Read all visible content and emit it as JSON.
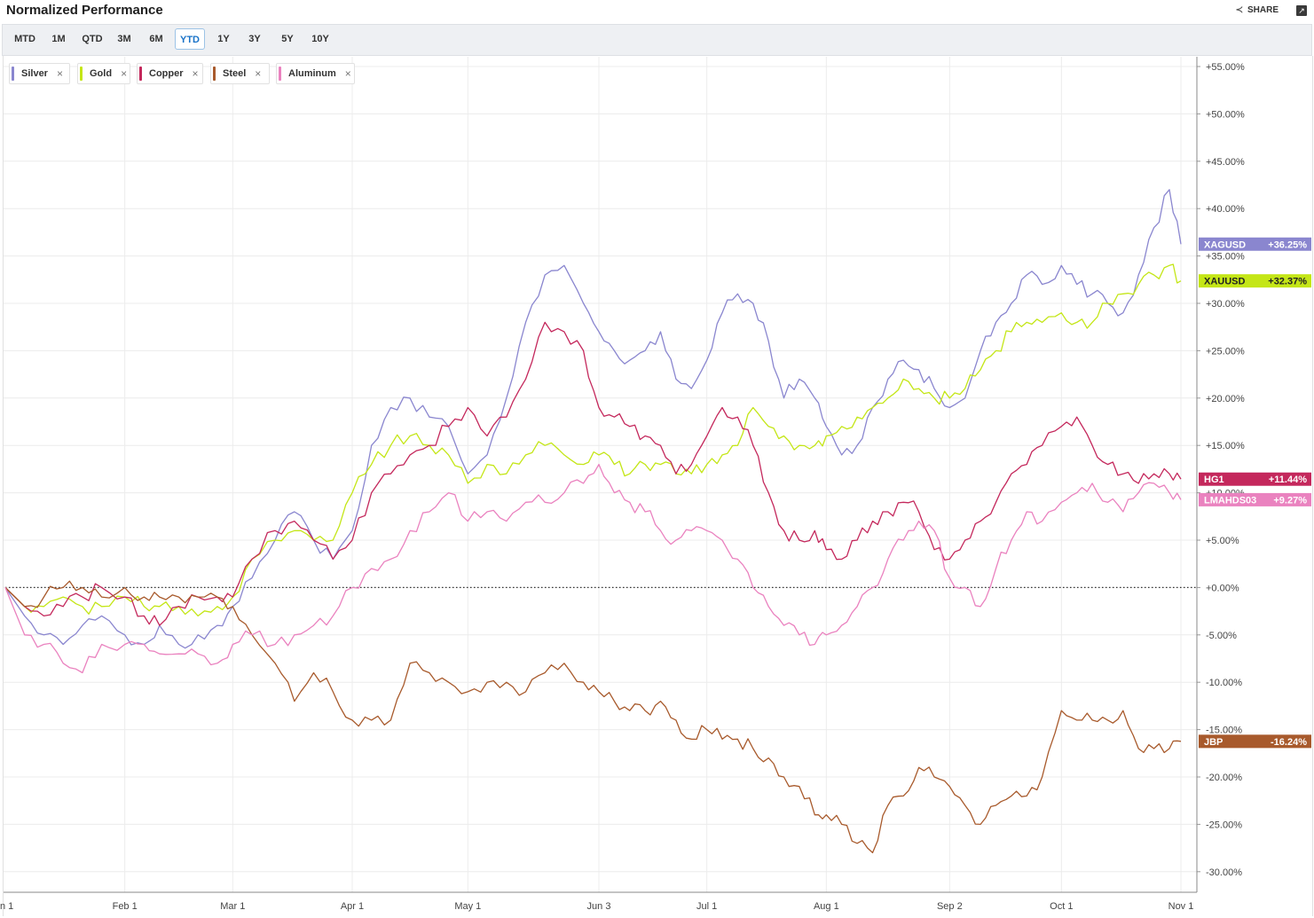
{
  "header": {
    "title": "Normalized Performance",
    "share_label": "SHARE",
    "share_icon": "share-icon",
    "expand_icon": "expand-icon"
  },
  "range_buttons": [
    {
      "label": "MTD",
      "active": false
    },
    {
      "label": "1M",
      "active": false
    },
    {
      "label": "QTD",
      "active": false
    },
    {
      "label": "3M",
      "active": false
    },
    {
      "label": "6M",
      "active": false
    },
    {
      "label": "YTD",
      "active": true
    },
    {
      "label": "1Y",
      "active": false
    },
    {
      "label": "3Y",
      "active": false
    },
    {
      "label": "5Y",
      "active": false
    },
    {
      "label": "10Y",
      "active": false
    }
  ],
  "legend_chips": [
    {
      "label": "Silver",
      "color": "#8a86cf"
    },
    {
      "label": "Gold",
      "color": "#c4e617"
    },
    {
      "label": "Copper",
      "color": "#c4285c"
    },
    {
      "label": "Steel",
      "color": "#a85a2c"
    },
    {
      "label": "Aluminum",
      "color": "#ea82bf"
    }
  ],
  "chart_data": {
    "type": "line",
    "title": "Normalized Performance",
    "x_tick_labels": [
      "n 1",
      "Feb 1",
      "Mar 1",
      "Apr 1",
      "May 1",
      "Jun 3",
      "Jul 1",
      "Aug 1",
      "Sep 2",
      "Oct 1",
      "Nov 1"
    ],
    "x_tick_days": [
      0,
      31,
      59,
      90,
      120,
      154,
      182,
      213,
      245,
      274,
      305
    ],
    "y_tick_labels": [
      "+55.00%",
      "+50.00%",
      "+45.00%",
      "+40.00%",
      "+35.00%",
      "+30.00%",
      "+25.00%",
      "+20.00%",
      "+15.00%",
      "+10.00%",
      "+5.00%",
      "+0.00%",
      "-5.00%",
      "-10.00%",
      "-15.00%",
      "-20.00%",
      "-25.00%",
      "-30.00%"
    ],
    "y_tick_values": [
      55,
      50,
      45,
      40,
      35,
      30,
      25,
      20,
      15,
      10,
      5,
      0,
      -5,
      -10,
      -15,
      -20,
      -25,
      -30
    ],
    "ylim": [
      -31,
      56
    ],
    "zero_line": "dotted",
    "grid": true,
    "series": [
      {
        "name": "Silver",
        "ticker": "XAGUSD",
        "last_label": "+36.25%",
        "last": 36.25,
        "color": "#8a86cf",
        "x": [
          0,
          5,
          10,
          15,
          20,
          25,
          31,
          36,
          40,
          45,
          50,
          55,
          59,
          64,
          70,
          75,
          80,
          85,
          90,
          95,
          100,
          105,
          110,
          115,
          120,
          125,
          130,
          135,
          140,
          145,
          150,
          154,
          158,
          162,
          166,
          170,
          174,
          178,
          182,
          186,
          190,
          194,
          198,
          202,
          206,
          210,
          213,
          217,
          221,
          225,
          229,
          233,
          237,
          241,
          245,
          249,
          253,
          257,
          261,
          265,
          269,
          274,
          278,
          282,
          286,
          290,
          294,
          298,
          302,
          305
        ],
        "y": [
          0,
          -3,
          -5,
          -6,
          -4,
          -3,
          -5,
          -6,
          -4,
          -6,
          -5,
          -4,
          -2,
          1,
          5,
          8,
          5,
          3,
          6,
          15,
          19,
          20,
          18,
          17,
          12,
          14,
          20,
          28,
          33,
          34,
          30,
          27,
          25,
          24,
          25,
          27,
          22,
          21,
          24,
          29,
          31,
          30,
          26,
          20,
          22,
          20,
          17,
          14,
          15,
          19,
          22,
          24,
          23,
          21,
          19,
          20,
          25,
          28,
          30,
          33,
          32,
          34,
          32,
          31,
          30,
          29,
          33,
          38,
          42,
          36.25
        ]
      },
      {
        "name": "Gold",
        "ticker": "XAUUSD",
        "last_label": "+32.37%",
        "last": 32.37,
        "color": "#c4e617",
        "x": [
          0,
          5,
          10,
          15,
          20,
          25,
          31,
          36,
          40,
          45,
          50,
          55,
          59,
          64,
          70,
          75,
          80,
          85,
          90,
          95,
          100,
          105,
          110,
          115,
          120,
          125,
          130,
          135,
          140,
          145,
          150,
          154,
          158,
          162,
          166,
          170,
          174,
          178,
          182,
          186,
          190,
          194,
          198,
          202,
          206,
          210,
          213,
          217,
          221,
          225,
          229,
          233,
          237,
          241,
          245,
          249,
          253,
          257,
          261,
          265,
          269,
          274,
          278,
          282,
          286,
          290,
          294,
          298,
          302,
          305
        ],
        "y": [
          0,
          -2,
          -2,
          -1,
          -2,
          -2,
          -1,
          -2,
          -2,
          -2,
          -3,
          -2,
          -1,
          3,
          5,
          6,
          5,
          5,
          10,
          13,
          15,
          16,
          15,
          14,
          11,
          13,
          12,
          14,
          15,
          14,
          13,
          14,
          13,
          12,
          13,
          13,
          12,
          12,
          13,
          14,
          15,
          19,
          17,
          16,
          15,
          15,
          16,
          17,
          18,
          19,
          20,
          22,
          21,
          20,
          20,
          21,
          23,
          25,
          27,
          28,
          28,
          29,
          28,
          28,
          30,
          31,
          32,
          33,
          34,
          32.37
        ]
      },
      {
        "name": "Copper",
        "ticker": "HG1",
        "last_label": "+11.44%",
        "last": 11.44,
        "color": "#c4285c",
        "x": [
          0,
          5,
          10,
          15,
          20,
          25,
          31,
          36,
          40,
          45,
          50,
          55,
          59,
          64,
          70,
          75,
          80,
          85,
          90,
          95,
          100,
          105,
          110,
          115,
          120,
          125,
          130,
          135,
          140,
          145,
          150,
          154,
          158,
          162,
          166,
          170,
          174,
          178,
          182,
          186,
          190,
          194,
          198,
          202,
          206,
          210,
          213,
          217,
          221,
          225,
          229,
          233,
          237,
          241,
          245,
          249,
          253,
          257,
          261,
          265,
          269,
          274,
          278,
          282,
          286,
          290,
          294,
          298,
          302,
          305
        ],
        "y": [
          0,
          -2,
          -3,
          -2,
          -1,
          0,
          -1,
          -3,
          -4,
          -2,
          -1,
          -1,
          -1,
          3,
          6,
          7,
          5,
          3,
          5,
          10,
          12,
          14,
          15,
          17,
          19,
          16,
          18,
          22,
          28,
          27,
          25,
          19,
          18,
          17,
          16,
          15,
          12,
          13,
          16,
          19,
          18,
          15,
          10,
          6,
          5,
          6,
          4,
          3,
          5,
          7,
          8,
          9,
          8,
          4,
          3,
          5,
          7,
          9,
          12,
          13,
          15,
          17,
          18,
          15,
          13,
          12,
          11,
          12,
          12,
          11.44
        ]
      },
      {
        "name": "Steel",
        "ticker": "JBP",
        "last_label": "-16.24%",
        "last": -16.24,
        "color": "#a85a2c",
        "x": [
          0,
          5,
          10,
          15,
          20,
          25,
          31,
          36,
          40,
          45,
          50,
          55,
          59,
          64,
          70,
          75,
          80,
          85,
          90,
          95,
          100,
          105,
          110,
          115,
          120,
          125,
          130,
          135,
          140,
          145,
          150,
          154,
          158,
          162,
          166,
          170,
          174,
          178,
          182,
          186,
          190,
          194,
          198,
          202,
          206,
          210,
          213,
          217,
          221,
          225,
          229,
          233,
          237,
          241,
          245,
          249,
          253,
          257,
          261,
          265,
          269,
          274,
          278,
          282,
          286,
          290,
          294,
          298,
          302,
          305
        ],
        "y": [
          0,
          -2,
          -1,
          0,
          0,
          -1,
          0,
          -1,
          -1,
          -1,
          -1,
          -1,
          -2,
          -5,
          -8,
          -12,
          -9,
          -11,
          -14,
          -14,
          -14,
          -8,
          -9,
          -10,
          -11,
          -10,
          -10,
          -11,
          -9,
          -8,
          -10,
          -11,
          -12,
          -13,
          -13,
          -12,
          -14,
          -16,
          -15,
          -16,
          -16,
          -17,
          -18,
          -20,
          -21,
          -24,
          -24,
          -25,
          -27,
          -28,
          -23,
          -22,
          -19,
          -20,
          -21,
          -23,
          -25,
          -23,
          -22,
          -22,
          -20,
          -13,
          -14,
          -14,
          -14,
          -13,
          -17,
          -17,
          -17,
          -16.24
        ]
      },
      {
        "name": "Aluminum",
        "ticker": "LMAHDS03",
        "last_label": "+9.27%",
        "last": 9.27,
        "color": "#ea82bf",
        "x": [
          0,
          5,
          10,
          15,
          20,
          25,
          31,
          36,
          40,
          45,
          50,
          55,
          59,
          64,
          70,
          75,
          80,
          85,
          90,
          95,
          100,
          105,
          110,
          115,
          120,
          125,
          130,
          135,
          140,
          145,
          150,
          154,
          158,
          162,
          166,
          170,
          174,
          178,
          182,
          186,
          190,
          194,
          198,
          202,
          206,
          210,
          213,
          217,
          221,
          225,
          229,
          233,
          237,
          241,
          245,
          249,
          253,
          257,
          261,
          265,
          269,
          274,
          278,
          282,
          286,
          290,
          294,
          298,
          302,
          305
        ],
        "y": [
          0,
          -5,
          -6,
          -8,
          -9,
          -6,
          -6,
          -6,
          -7,
          -7,
          -7,
          -8,
          -6,
          -5,
          -6,
          -5,
          -4,
          -3,
          0,
          2,
          3,
          6,
          8,
          10,
          7,
          8,
          7,
          9,
          9,
          10,
          11,
          13,
          10,
          9,
          8,
          6,
          5,
          6,
          6,
          5,
          3,
          0,
          -2,
          -4,
          -5,
          -6,
          -5,
          -4,
          -2,
          0,
          3,
          5,
          7,
          6,
          1,
          0,
          -2,
          2,
          5,
          8,
          7,
          9,
          10,
          11,
          9,
          8,
          10,
          11,
          10,
          9.27
        ]
      }
    ]
  }
}
